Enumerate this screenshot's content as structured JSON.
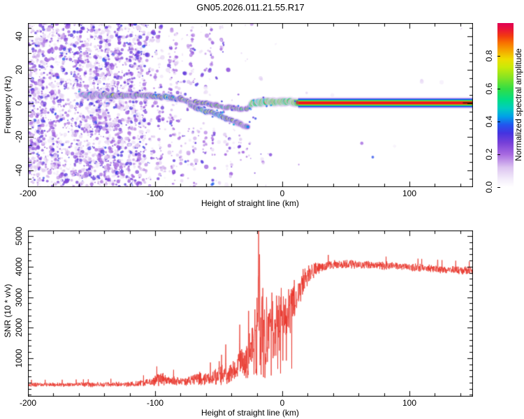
{
  "figure": {
    "title": "GN05.2026.011.21.55.R17",
    "background": "#ffffff",
    "axis_color": "#000000"
  },
  "chart_data": [
    {
      "type": "heatmap",
      "name": "doppler-spectrogram",
      "xlabel": "Height of straight line (km)",
      "ylabel": "Frequency (Hz)",
      "xlim": [
        -200,
        150
      ],
      "ylim": [
        -50,
        48
      ],
      "xticks": [
        -200,
        -100,
        0,
        100
      ],
      "xminor_step": 20,
      "yticks": [
        40,
        20,
        0,
        -20,
        -40
      ],
      "yminor_step": 5,
      "colorbar": {
        "label": "Normalized spectral amplitude",
        "tick_labels": [
          "0.0",
          "0.2",
          "0.4",
          "0.6",
          "0.8"
        ],
        "tick_values": [
          0.0,
          0.2,
          0.4,
          0.6,
          0.8
        ],
        "range": [
          0,
          1
        ],
        "stops": [
          [
            0.0,
            "#ffffff"
          ],
          [
            0.05,
            "#f3ecfa"
          ],
          [
            0.12,
            "#dcc4f0"
          ],
          [
            0.2,
            "#a86ae0"
          ],
          [
            0.27,
            "#7740d8"
          ],
          [
            0.33,
            "#4433e0"
          ],
          [
            0.38,
            "#2255ee"
          ],
          [
            0.43,
            "#00a0e8"
          ],
          [
            0.48,
            "#00ccc0"
          ],
          [
            0.53,
            "#00dd88"
          ],
          [
            0.6,
            "#33dd44"
          ],
          [
            0.67,
            "#88e422"
          ],
          [
            0.73,
            "#c8ea08"
          ],
          [
            0.78,
            "#eedd00"
          ],
          [
            0.83,
            "#f5a800"
          ],
          [
            0.88,
            "#f87100"
          ],
          [
            0.92,
            "#f23b10"
          ],
          [
            0.96,
            "#ea1535"
          ],
          [
            1.0,
            "#e00055"
          ]
        ]
      },
      "signal_trace": {
        "main": [
          [
            -158,
            5.5,
            0.45
          ],
          [
            -155,
            4.5,
            0.6
          ],
          [
            -152,
            5.5,
            0.5
          ],
          [
            -149,
            4.5,
            0.62
          ],
          [
            -146,
            5.5,
            0.55
          ],
          [
            -143,
            4.2,
            0.5
          ],
          [
            -140,
            5.2,
            0.62
          ],
          [
            -137,
            4.4,
            0.55
          ],
          [
            -134,
            5,
            0.7
          ],
          [
            -131,
            4.3,
            0.62
          ],
          [
            -128,
            5.3,
            0.58
          ],
          [
            -125,
            4.4,
            0.68
          ],
          [
            -122,
            4.8,
            0.55
          ],
          [
            -119,
            5.2,
            0.6
          ],
          [
            -116,
            4.6,
            0.55
          ],
          [
            -113,
            5.2,
            0.62
          ],
          [
            -110,
            4.9,
            0.58
          ],
          [
            -107,
            4.4,
            0.66
          ],
          [
            -104,
            4.9,
            0.6
          ],
          [
            -101,
            4.4,
            0.68
          ],
          [
            -98,
            4.2,
            0.75
          ],
          [
            -95,
            3.8,
            0.68
          ],
          [
            -92,
            4,
            0.72
          ],
          [
            -89,
            3.2,
            0.82
          ],
          [
            -86,
            3.4,
            0.7
          ],
          [
            -83,
            2.4,
            0.74
          ],
          [
            -80,
            2.6,
            0.66
          ],
          [
            -77,
            1.6,
            0.62
          ],
          [
            -74,
            1.2,
            0.7
          ],
          [
            -72,
            0.6,
            0.62
          ]
        ],
        "upper_branch": [
          [
            -72,
            0.6,
            0.6
          ],
          [
            -68,
            0.9,
            0.62
          ],
          [
            -64,
            0.1,
            0.66
          ],
          [
            -60,
            0.5,
            0.7
          ],
          [
            -56,
            -0.6,
            0.6
          ],
          [
            -52,
            -1.2,
            0.66
          ],
          [
            -48,
            -1.8,
            0.56
          ],
          [
            -44,
            -2.6,
            0.62
          ],
          [
            -40,
            -2.2,
            0.66
          ],
          [
            -36,
            -3.2,
            0.6
          ],
          [
            -32,
            -3.6,
            0.56
          ],
          [
            -28,
            -2.8,
            0.62
          ],
          [
            -25,
            -1.8,
            0.7
          ]
        ],
        "lower_branch": [
          [
            -72,
            -1.2,
            0.55
          ],
          [
            -68,
            -2.6,
            0.7
          ],
          [
            -64,
            -3.6,
            0.74
          ],
          [
            -60,
            -4.6,
            0.8
          ],
          [
            -56,
            -5.2,
            0.7
          ],
          [
            -52,
            -6.6,
            0.76
          ],
          [
            -48,
            -7.6,
            0.8
          ],
          [
            -44,
            -8.8,
            0.7
          ],
          [
            -40,
            -10.2,
            0.74
          ],
          [
            -36,
            -11.2,
            0.68
          ],
          [
            -33,
            -12.2,
            0.62
          ],
          [
            -30,
            -13.2,
            0.56
          ],
          [
            -27,
            -14.4,
            0.46
          ]
        ],
        "bright_band": [
          [
            -24.5,
            -0.6,
            0.9
          ],
          [
            -23,
            0.4,
            1
          ],
          [
            -21,
            0.2,
            0.92
          ],
          [
            -19,
            0.8,
            0.8
          ],
          [
            -17,
            0.3,
            0.95
          ],
          [
            -15,
            0.8,
            1
          ],
          [
            -13,
            0.8,
            0.86
          ],
          [
            -11,
            1.2,
            1
          ],
          [
            -9,
            0.8,
            0.95
          ],
          [
            -7,
            1.2,
            1
          ],
          [
            -5,
            0.8,
            1
          ],
          [
            -3,
            1.1,
            0.95
          ],
          [
            -1,
            0.7,
            1
          ],
          [
            1,
            1.1,
            1
          ],
          [
            3,
            0.8,
            0.92
          ],
          [
            5,
            1.2,
            1
          ],
          [
            7,
            0.8,
            0.96
          ],
          [
            9,
            0.8,
            1
          ],
          [
            11,
            0.5,
            0.96
          ],
          [
            12.5,
            0.3,
            0.95
          ]
        ]
      },
      "stripe": {
        "x_start": 12.5,
        "x_end": 150,
        "f_center": 0.3,
        "layers": [
          {
            "h": 17,
            "c": "#d9bdf2",
            "al": 0.55
          },
          {
            "h": 12.5,
            "c": "#2b2bee",
            "al": 1
          },
          {
            "h": 9.6,
            "c": "#00bfe0",
            "al": 1
          },
          {
            "h": 7.8,
            "c": "#2ad73c",
            "al": 1
          },
          {
            "h": 5.6,
            "c": "#d8ea00",
            "al": 1
          },
          {
            "h": 4.2,
            "c": "#ee1020",
            "al": 1
          }
        ],
        "dark_segment": {
          "x_start": 142,
          "x_end": 149.5,
          "h": 1.8,
          "c": "#5f1207"
        }
      },
      "noise": {
        "seed": 987654,
        "attempts": 6200,
        "density_profile": [
          [
            -200,
            1
          ],
          [
            -120,
            1
          ],
          [
            -112,
            0.75
          ],
          [
            -104,
            0.45
          ],
          [
            -96,
            0.3
          ],
          [
            -88,
            0.22
          ],
          [
            -75,
            0.16
          ],
          [
            -62,
            0.12
          ],
          [
            -50,
            0.08
          ],
          [
            -40,
            0.05
          ],
          [
            -30,
            0.025
          ],
          [
            -18,
            0.012
          ],
          [
            0,
            0.006
          ],
          [
            40,
            0.003
          ],
          [
            150,
            0.002
          ]
        ],
        "dense_columns": 46,
        "streaks": [
          {
            "x": -88,
            "f0": 6,
            "f1": 47,
            "n": 24
          },
          {
            "x": -84,
            "f0": 10,
            "f1": 44,
            "n": 12
          },
          {
            "x": -71,
            "f0": 8,
            "f1": 47,
            "n": 22
          },
          {
            "x": -56,
            "f0": 20,
            "f1": 46,
            "n": 12
          },
          {
            "x": -47,
            "f0": 26,
            "f1": 40,
            "n": 5
          },
          {
            "x": -97,
            "f0": -50,
            "f1": 2,
            "n": 20
          },
          {
            "x": -86,
            "f0": -50,
            "f1": -8,
            "n": 16
          },
          {
            "x": -80,
            "f0": -48,
            "f1": -4,
            "n": 12
          },
          {
            "x": -69,
            "f0": -50,
            "f1": -14,
            "n": 16
          },
          {
            "x": -61,
            "f0": -32,
            "f1": -10,
            "n": 8
          },
          {
            "x": -54,
            "f0": -46,
            "f1": -16,
            "n": 12
          },
          {
            "x": -44,
            "f0": -40,
            "f1": -16,
            "n": 7
          },
          {
            "x": -41,
            "f0": -44,
            "f1": -20,
            "n": 8
          },
          {
            "x": -33,
            "f0": -40,
            "f1": -18,
            "n": 7
          },
          {
            "x": -27,
            "f0": -34,
            "f1": -24,
            "n": 4
          },
          {
            "x": -16,
            "f0": -36,
            "f1": -26,
            "n": 4
          },
          {
            "x": -10,
            "f0": -32,
            "f1": -28,
            "n": 2
          }
        ]
      }
    },
    {
      "type": "line",
      "name": "snr-profile",
      "xlabel": "Height of straight line (km)",
      "ylabel": "SNR (10 * v/v)",
      "xlim": [
        -200,
        150
      ],
      "ylim": [
        -260,
        5185
      ],
      "xticks": [
        -200,
        -100,
        0,
        100
      ],
      "xminor_step": 20,
      "yticks": [
        5000,
        4000,
        3000,
        2000,
        1000
      ],
      "yminor_step": 200,
      "color": "#e8332a",
      "seed": 24680,
      "envelope": [
        [
          -200,
          130,
          80
        ],
        [
          -170,
          135,
          80
        ],
        [
          -140,
          140,
          90
        ],
        [
          -120,
          150,
          95
        ],
        [
          -110,
          180,
          120
        ],
        [
          -102,
          240,
          170
        ],
        [
          -96,
          330,
          260
        ],
        [
          -90,
          300,
          220
        ],
        [
          -84,
          240,
          170
        ],
        [
          -78,
          230,
          170
        ],
        [
          -72,
          280,
          200
        ],
        [
          -66,
          330,
          260
        ],
        [
          -60,
          300,
          240
        ],
        [
          -54,
          360,
          280
        ],
        [
          -48,
          430,
          330
        ],
        [
          -44,
          560,
          430
        ],
        [
          -40,
          520,
          420
        ],
        [
          -36,
          700,
          560
        ],
        [
          -32,
          900,
          750
        ],
        [
          -28,
          850,
          700
        ],
        [
          -25,
          1300,
          1000
        ],
        [
          -22,
          1300,
          1100
        ],
        [
          -19,
          2300,
          2100
        ],
        [
          -17,
          1900,
          1700
        ],
        [
          -15,
          1500,
          1300
        ],
        [
          -13,
          1700,
          1300
        ],
        [
          -11,
          2100,
          1000
        ],
        [
          -9,
          2050,
          900
        ],
        [
          -7,
          2150,
          900
        ],
        [
          -5,
          2250,
          850
        ],
        [
          -3,
          2300,
          850
        ],
        [
          -1,
          2250,
          900
        ],
        [
          1,
          2350,
          900
        ],
        [
          3,
          2400,
          850
        ],
        [
          5,
          2550,
          800
        ],
        [
          7,
          2650,
          850
        ],
        [
          9,
          2750,
          800
        ],
        [
          11,
          3050,
          700
        ],
        [
          13,
          3250,
          600
        ],
        [
          15,
          3400,
          520
        ],
        [
          18,
          3600,
          450
        ],
        [
          21,
          3750,
          380
        ],
        [
          24,
          3850,
          300
        ],
        [
          28,
          3950,
          230
        ],
        [
          33,
          4000,
          190
        ],
        [
          40,
          4050,
          170
        ],
        [
          50,
          4080,
          160
        ],
        [
          60,
          4070,
          150
        ],
        [
          70,
          4060,
          150
        ],
        [
          80,
          4030,
          150
        ],
        [
          90,
          4010,
          150
        ],
        [
          100,
          3980,
          150
        ],
        [
          110,
          3950,
          150
        ],
        [
          120,
          3930,
          150
        ],
        [
          130,
          3900,
          150
        ],
        [
          140,
          3870,
          160
        ],
        [
          150,
          3840,
          160
        ]
      ],
      "spikes": [
        [
          -18.6,
          5180
        ],
        [
          -17.9,
          4400
        ],
        [
          -21.5,
          2600
        ],
        [
          -26.5,
          2550
        ],
        [
          -33.5,
          2100
        ],
        [
          -15.2,
          3300
        ],
        [
          -12.4,
          3000
        ],
        [
          -8.2,
          3150
        ],
        [
          -4.4,
          3050
        ],
        [
          -0.8,
          3300
        ],
        [
          2.6,
          2950
        ],
        [
          5.8,
          3050
        ],
        [
          8.4,
          3300
        ],
        [
          -44.5,
          1450
        ],
        [
          -49.5,
          900
        ]
      ]
    }
  ]
}
